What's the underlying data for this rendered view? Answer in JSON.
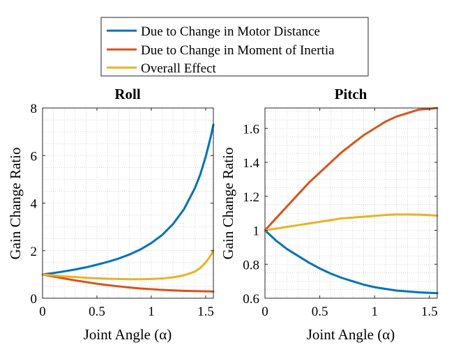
{
  "legend": {
    "entries": [
      {
        "label": "Due to Change in Motor Distance",
        "color": "#0072BD"
      },
      {
        "label": "Due to Change in Moment of Inertia",
        "color": "#D95319"
      },
      {
        "label": "Overall Effect",
        "color": "#EDB120"
      }
    ]
  },
  "chart_data": [
    {
      "type": "line",
      "title": "Roll",
      "xlabel": "Joint Angle (α)",
      "ylabel": "Gain Change Ratio",
      "xlim": [
        0,
        1.5708
      ],
      "ylim": [
        0,
        8
      ],
      "xticks": [
        0,
        0.5,
        1,
        1.5
      ],
      "xtick_labels": [
        "0",
        "0.5",
        "1",
        "1.5"
      ],
      "yticks": [
        0,
        2,
        4,
        6,
        8
      ],
      "ytick_labels": [
        "0",
        "2",
        "4",
        "6",
        "8"
      ],
      "grid": "minor-dotted",
      "x": [
        0,
        0.1,
        0.2,
        0.3,
        0.4,
        0.5,
        0.6,
        0.7,
        0.8,
        0.9,
        1.0,
        1.1,
        1.2,
        1.3,
        1.4,
        1.45,
        1.5,
        1.55,
        1.5708
      ],
      "series": [
        {
          "name": "Due to Change in Motor Distance",
          "color": "#0072BD",
          "values": [
            1.0,
            1.06,
            1.13,
            1.21,
            1.3,
            1.41,
            1.53,
            1.67,
            1.84,
            2.05,
            2.32,
            2.66,
            3.12,
            3.74,
            4.62,
            5.2,
            5.95,
            6.85,
            7.3
          ]
        },
        {
          "name": "Due to Change in Moment of Inertia",
          "color": "#D95319",
          "values": [
            1.0,
            0.91,
            0.83,
            0.75,
            0.68,
            0.61,
            0.55,
            0.5,
            0.45,
            0.41,
            0.38,
            0.35,
            0.33,
            0.31,
            0.3,
            0.295,
            0.29,
            0.285,
            0.28
          ]
        },
        {
          "name": "Overall Effect",
          "color": "#EDB120",
          "values": [
            1.0,
            0.96,
            0.92,
            0.89,
            0.86,
            0.84,
            0.82,
            0.81,
            0.8,
            0.8,
            0.81,
            0.83,
            0.88,
            0.96,
            1.12,
            1.27,
            1.5,
            1.82,
            2.0
          ]
        }
      ]
    },
    {
      "type": "line",
      "title": "Pitch",
      "xlabel": "Joint Angle (α)",
      "ylabel": "Gain Change Ratio",
      "xlim": [
        0,
        1.5708
      ],
      "ylim": [
        0.6,
        1.72
      ],
      "xticks": [
        0,
        0.5,
        1,
        1.5
      ],
      "xtick_labels": [
        "0",
        "0.5",
        "1",
        "1.5"
      ],
      "yticks": [
        0.6,
        0.8,
        1.0,
        1.2,
        1.4,
        1.6
      ],
      "ytick_labels": [
        "0.6",
        "0.8",
        "1",
        "1.2",
        "1.4",
        "1.6"
      ],
      "grid": "minor-dotted",
      "x": [
        0,
        0.1,
        0.2,
        0.3,
        0.4,
        0.5,
        0.6,
        0.7,
        0.8,
        0.9,
        1.0,
        1.1,
        1.2,
        1.3,
        1.4,
        1.5,
        1.5708
      ],
      "series": [
        {
          "name": "Due to Change in Motor Distance",
          "color": "#0072BD",
          "values": [
            1.0,
            0.94,
            0.89,
            0.85,
            0.81,
            0.775,
            0.745,
            0.72,
            0.7,
            0.68,
            0.665,
            0.655,
            0.645,
            0.64,
            0.635,
            0.632,
            0.63
          ]
        },
        {
          "name": "Due to Change in Moment of Inertia",
          "color": "#D95319",
          "values": [
            1.0,
            1.07,
            1.14,
            1.21,
            1.28,
            1.34,
            1.4,
            1.46,
            1.51,
            1.56,
            1.6,
            1.64,
            1.67,
            1.69,
            1.71,
            1.715,
            1.72
          ]
        },
        {
          "name": "Overall Effect",
          "color": "#EDB120",
          "values": [
            1.0,
            1.01,
            1.02,
            1.03,
            1.04,
            1.05,
            1.06,
            1.07,
            1.075,
            1.08,
            1.085,
            1.09,
            1.093,
            1.093,
            1.092,
            1.089,
            1.086
          ]
        }
      ]
    }
  ]
}
